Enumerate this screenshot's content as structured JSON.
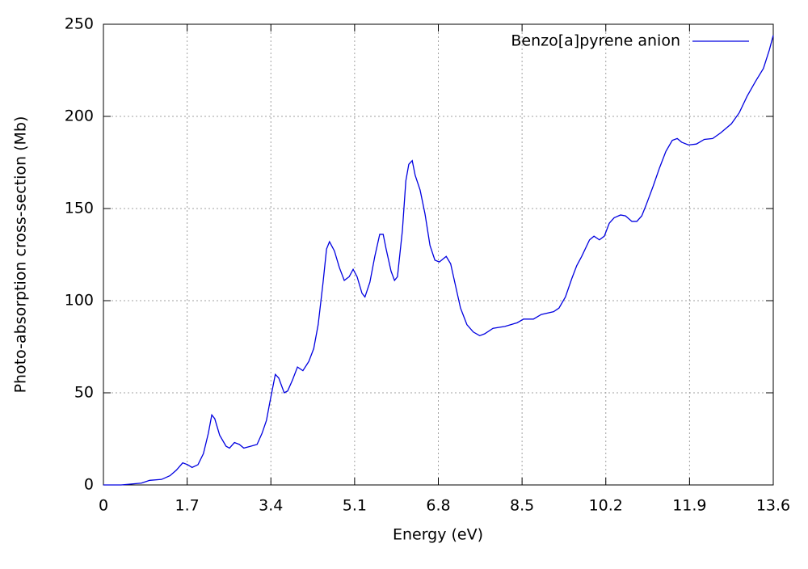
{
  "chart_data": {
    "type": "line",
    "xlabel": "Energy (eV)",
    "ylabel": "Photo-absorption cross-section (Mb)",
    "x": [
      0,
      0.36,
      0.77,
      0.94,
      1.18,
      1.35,
      1.48,
      1.61,
      1.71,
      1.8,
      1.92,
      2.03,
      2.13,
      2.2,
      2.26,
      2.36,
      2.49,
      2.56,
      2.66,
      2.76,
      2.85,
      2.99,
      3.12,
      3.22,
      3.31,
      3.38,
      3.49,
      3.56,
      3.67,
      3.74,
      3.84,
      3.94,
      4.05,
      4.17,
      4.27,
      4.36,
      4.46,
      4.53,
      4.59,
      4.69,
      4.79,
      4.89,
      4.99,
      5.07,
      5.15,
      5.25,
      5.31,
      5.41,
      5.51,
      5.61,
      5.68,
      5.74,
      5.84,
      5.91,
      5.97,
      6.07,
      6.14,
      6.2,
      6.27,
      6.33,
      6.43,
      6.53,
      6.63,
      6.73,
      6.82,
      6.96,
      7.05,
      7.15,
      7.25,
      7.38,
      7.51,
      7.64,
      7.74,
      7.91,
      8.15,
      8.4,
      8.53,
      8.73,
      8.89,
      9.14,
      9.25,
      9.38,
      9.51,
      9.61,
      9.71,
      9.87,
      9.96,
      10.07,
      10.17,
      10.27,
      10.37,
      10.5,
      10.6,
      10.73,
      10.83,
      10.93,
      11.02,
      11.16,
      11.29,
      11.42,
      11.55,
      11.65,
      11.74,
      11.88,
      12.04,
      12.2,
      12.37,
      12.53,
      12.75,
      12.91,
      13.07,
      13.24,
      13.4,
      13.52,
      13.6
    ],
    "series": [
      {
        "name": "Benzo[a]pyrene anion",
        "color": "#0000e0",
        "values": [
          0,
          0,
          1,
          2.5,
          3,
          5,
          8,
          12,
          11,
          9.5,
          11,
          17,
          28,
          38,
          36,
          27,
          21,
          20,
          23,
          22,
          20,
          21,
          22,
          28,
          35,
          45,
          60,
          58,
          50,
          51,
          57,
          64,
          62,
          67,
          74,
          87,
          110,
          128,
          132,
          127,
          118,
          111,
          113,
          117,
          113,
          104,
          102,
          110,
          124,
          136,
          136,
          128,
          116,
          111,
          113,
          138,
          165,
          174,
          176,
          168,
          160,
          147,
          130,
          122,
          121,
          124,
          120,
          108,
          96,
          87,
          83,
          81,
          82,
          85,
          86,
          88,
          90,
          90,
          92.5,
          94,
          96,
          102,
          112,
          119,
          124,
          133,
          135,
          133,
          135,
          142,
          145,
          146.5,
          146,
          143,
          143,
          146,
          152,
          162,
          172,
          181,
          187,
          188,
          186,
          184.5,
          185,
          187.5,
          188,
          191,
          196,
          202,
          211,
          219,
          226,
          236,
          244
        ]
      }
    ],
    "xlim": [
      0,
      13.6
    ],
    "xticks": [
      0,
      1.7,
      3.4,
      5.1,
      6.8,
      8.5,
      10.2,
      11.9,
      13.6
    ],
    "ylim": [
      0,
      250
    ],
    "yticks": [
      0,
      50,
      100,
      150,
      200,
      250
    ],
    "grid": true,
    "legend": "top-right"
  }
}
